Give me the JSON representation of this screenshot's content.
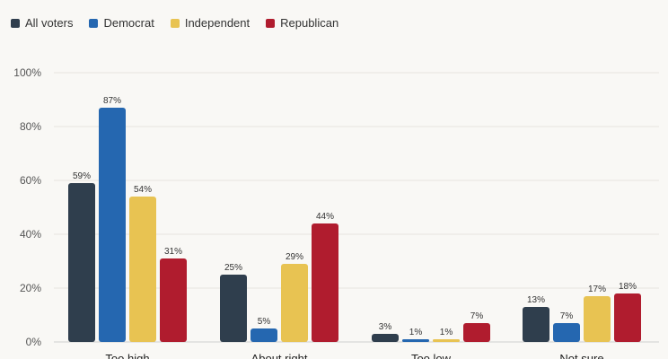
{
  "chart_data": {
    "type": "bar",
    "categories": [
      "Too high",
      "About right",
      "Too low",
      "Not sure"
    ],
    "series": [
      {
        "name": "All voters",
        "color": "#2f3e4d",
        "values": [
          59,
          25,
          3,
          13
        ]
      },
      {
        "name": "Democrat",
        "color": "#2567b0",
        "values": [
          87,
          5,
          1,
          7
        ]
      },
      {
        "name": "Independent",
        "color": "#e8c352",
        "values": [
          54,
          29,
          1,
          17
        ]
      },
      {
        "name": "Republican",
        "color": "#b01c2e",
        "values": [
          31,
          44,
          7,
          18
        ]
      }
    ],
    "ylim": [
      0,
      100
    ],
    "yticks": [
      "0%",
      "20%",
      "40%",
      "60%",
      "80%",
      "100%"
    ],
    "value_suffix": "%",
    "grid": true,
    "legend_position": "top-left"
  }
}
